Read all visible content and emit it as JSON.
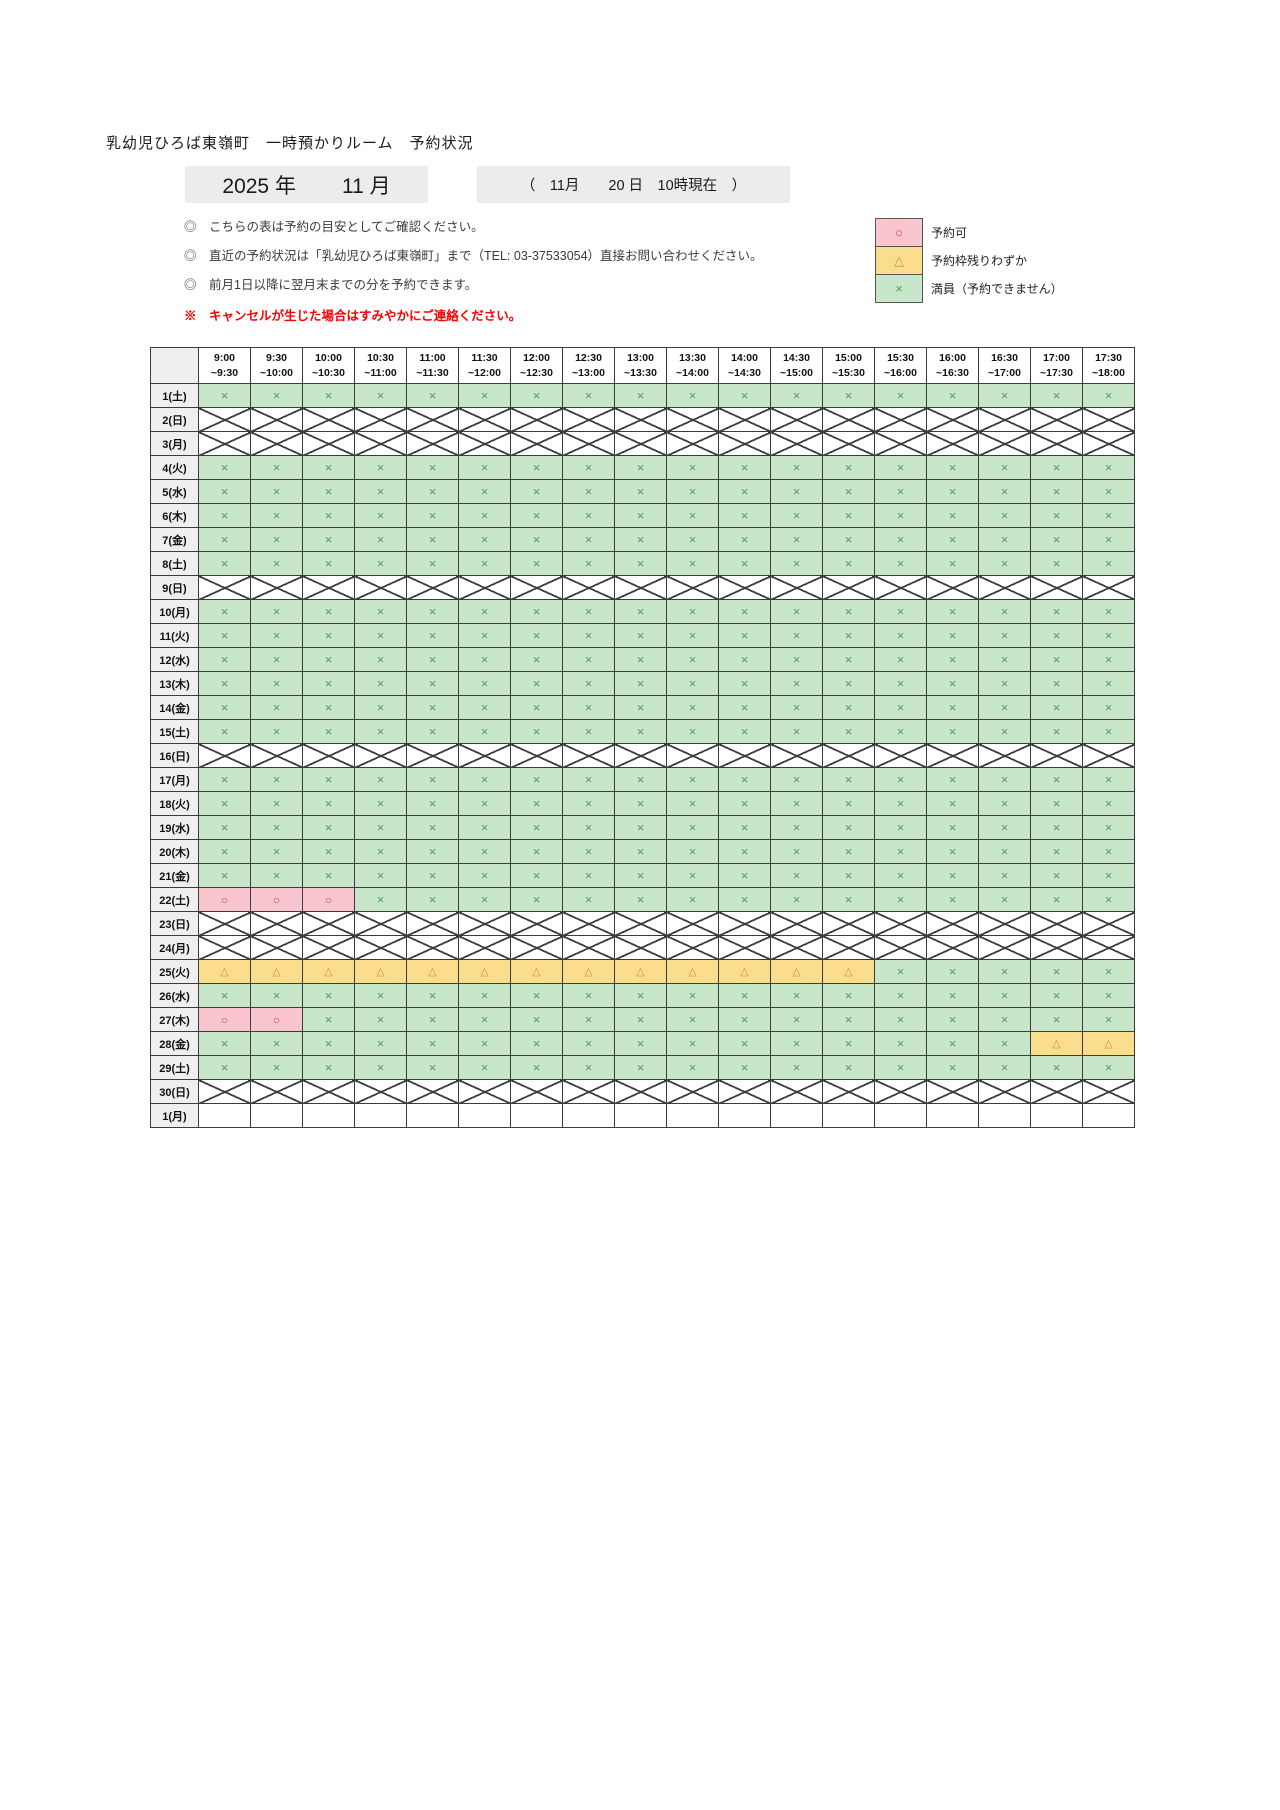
{
  "page": {
    "title": "乳幼児ひろば東嶺町　一時預かりルーム　予約状況",
    "year_label": "2025 年",
    "month_label": "11 月",
    "as_of": "（　11月　　20 日　10時現在　）",
    "notes": [
      "◎　こちらの表は予約の目安としてご確認ください。",
      "◎　直近の予約状況は「乳幼児ひろば東嶺町」まで（TEL: 03-37533054）直接お問い合わせください。",
      "◎　前月1日以降に翌月末までの分を予約できます。"
    ],
    "warning": "※　キャンセルが生じた場合はすみやかにご連絡ください。"
  },
  "legend": [
    {
      "key": "o",
      "symbol": "○",
      "label": "予約可",
      "bg": "#f9c5ce",
      "fg": "#dd3a50"
    },
    {
      "key": "t",
      "symbol": "△",
      "label": "予約枠残りわずか",
      "bg": "#fbdd8e",
      "fg": "#d0953a"
    },
    {
      "key": "x",
      "symbol": "×",
      "label": "満員（予約できません）",
      "bg": "#c8e6c9",
      "fg": "#4aa455"
    }
  ],
  "table": {
    "symbols": {
      "x": "×",
      "o": "○",
      "t": "△"
    },
    "time_slots": [
      {
        "start": "9:00",
        "end": "~9:30"
      },
      {
        "start": "9:30",
        "end": "~10:00"
      },
      {
        "start": "10:00",
        "end": "~10:30"
      },
      {
        "start": "10:30",
        "end": "~11:00"
      },
      {
        "start": "11:00",
        "end": "~11:30"
      },
      {
        "start": "11:30",
        "end": "~12:00"
      },
      {
        "start": "12:00",
        "end": "~12:30"
      },
      {
        "start": "12:30",
        "end": "~13:00"
      },
      {
        "start": "13:00",
        "end": "~13:30"
      },
      {
        "start": "13:30",
        "end": "~14:00"
      },
      {
        "start": "14:00",
        "end": "~14:30"
      },
      {
        "start": "14:30",
        "end": "~15:00"
      },
      {
        "start": "15:00",
        "end": "~15:30"
      },
      {
        "start": "15:30",
        "end": "~16:00"
      },
      {
        "start": "16:00",
        "end": "~16:30"
      },
      {
        "start": "16:30",
        "end": "~17:00"
      },
      {
        "start": "17:00",
        "end": "~17:30"
      },
      {
        "start": "17:30",
        "end": "~18:00"
      }
    ],
    "rows": [
      {
        "date": "1(土)",
        "status": "open",
        "cells": "xxxxxxxxxxxxxxxxxx"
      },
      {
        "date": "2(日)",
        "status": "closed"
      },
      {
        "date": "3(月)",
        "status": "closed"
      },
      {
        "date": "4(火)",
        "status": "open",
        "cells": "xxxxxxxxxxxxxxxxxx"
      },
      {
        "date": "5(水)",
        "status": "open",
        "cells": "xxxxxxxxxxxxxxxxxx"
      },
      {
        "date": "6(木)",
        "status": "open",
        "cells": "xxxxxxxxxxxxxxxxxx"
      },
      {
        "date": "7(金)",
        "status": "open",
        "cells": "xxxxxxxxxxxxxxxxxx"
      },
      {
        "date": "8(土)",
        "status": "open",
        "cells": "xxxxxxxxxxxxxxxxxx"
      },
      {
        "date": "9(日)",
        "status": "closed"
      },
      {
        "date": "10(月)",
        "status": "open",
        "cells": "xxxxxxxxxxxxxxxxxx"
      },
      {
        "date": "11(火)",
        "status": "open",
        "cells": "xxxxxxxxxxxxxxxxxx"
      },
      {
        "date": "12(水)",
        "status": "open",
        "cells": "xxxxxxxxxxxxxxxxxx"
      },
      {
        "date": "13(木)",
        "status": "open",
        "cells": "xxxxxxxxxxxxxxxxxx"
      },
      {
        "date": "14(金)",
        "status": "open",
        "cells": "xxxxxxxxxxxxxxxxxx"
      },
      {
        "date": "15(土)",
        "status": "open",
        "cells": "xxxxxxxxxxxxxxxxxx"
      },
      {
        "date": "16(日)",
        "status": "closed"
      },
      {
        "date": "17(月)",
        "status": "open",
        "cells": "xxxxxxxxxxxxxxxxxx"
      },
      {
        "date": "18(火)",
        "status": "open",
        "cells": "xxxxxxxxxxxxxxxxxx"
      },
      {
        "date": "19(水)",
        "status": "open",
        "cells": "xxxxxxxxxxxxxxxxxx"
      },
      {
        "date": "20(木)",
        "status": "open",
        "cells": "xxxxxxxxxxxxxxxxxx"
      },
      {
        "date": "21(金)",
        "status": "open",
        "cells": "xxxxxxxxxxxxxxxxxx"
      },
      {
        "date": "22(土)",
        "status": "open",
        "cells": "oooxxxxxxxxxxxxxxx"
      },
      {
        "date": "23(日)",
        "status": "closed"
      },
      {
        "date": "24(月)",
        "status": "closed"
      },
      {
        "date": "25(火)",
        "status": "open",
        "cells": "tttttttttttttxxxxx"
      },
      {
        "date": "26(水)",
        "status": "open",
        "cells": "xxxxxxxxxxxxxxxxxx"
      },
      {
        "date": "27(木)",
        "status": "open",
        "cells": "ooxxxxxxxxxxxxxxxx"
      },
      {
        "date": "28(金)",
        "status": "open",
        "cells": "xxxxxxxxxxxxxxxxtt"
      },
      {
        "date": "29(土)",
        "status": "open",
        "cells": "xxxxxxxxxxxxxxxxxx"
      },
      {
        "date": "30(日)",
        "status": "closed"
      },
      {
        "date": "1(月)",
        "status": "empty"
      }
    ]
  }
}
